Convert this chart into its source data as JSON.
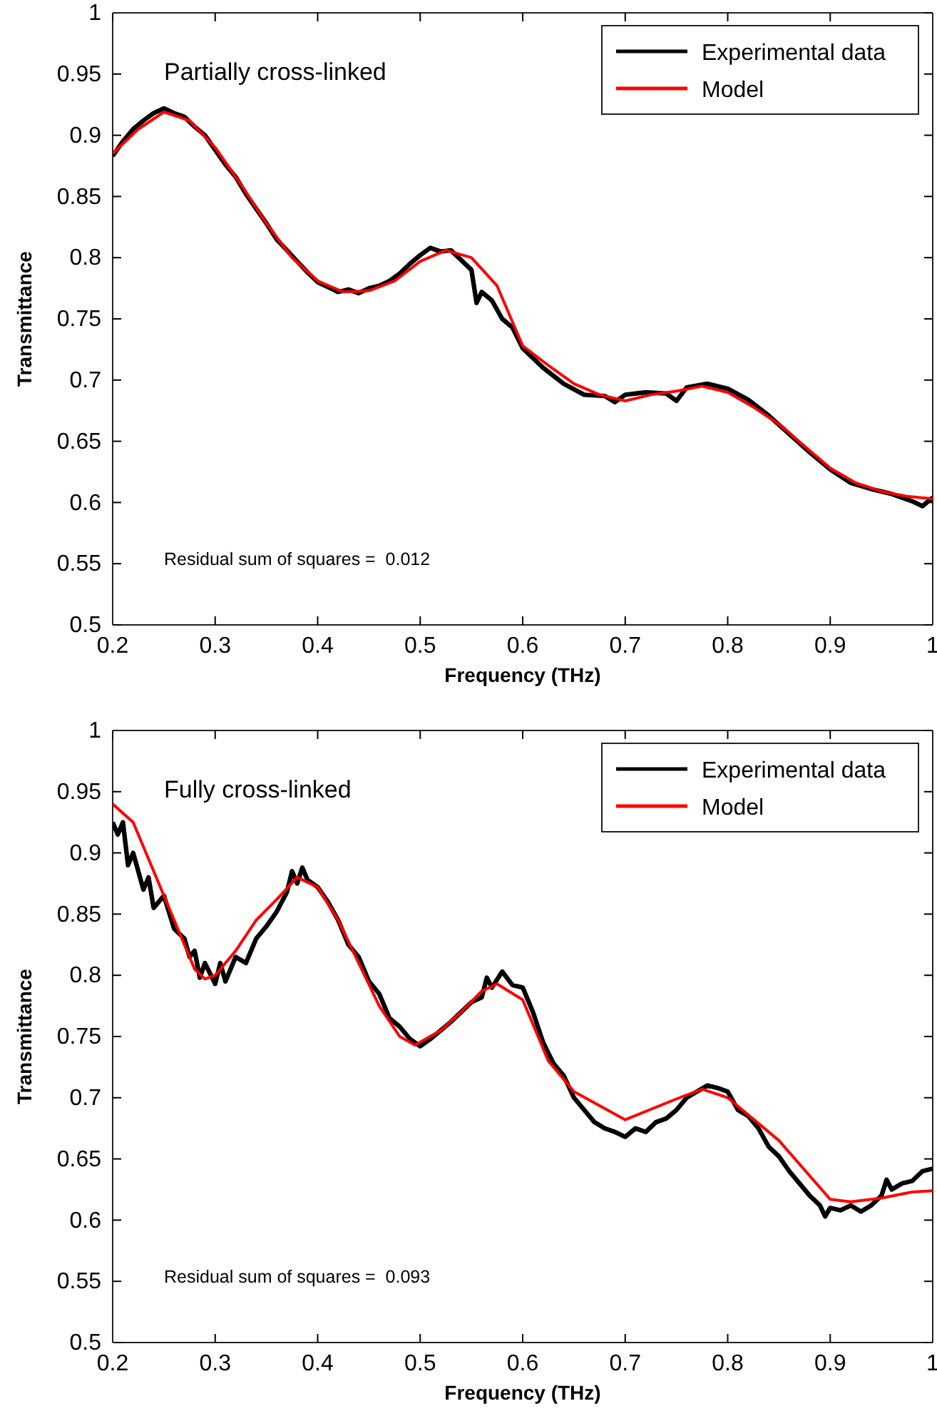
{
  "chart_data": [
    {
      "type": "line",
      "title": "Partially cross-linked",
      "xlabel": "Frequency (THz)",
      "ylabel": "Transmittance",
      "xlim": [
        0.2,
        1
      ],
      "ylim": [
        0.5,
        1
      ],
      "xticks": [
        0.2,
        0.3,
        0.4,
        0.5,
        0.6,
        0.7,
        0.8,
        0.9,
        1
      ],
      "yticks": [
        0.5,
        0.55,
        0.6,
        0.65,
        0.7,
        0.75,
        0.8,
        0.85,
        0.9,
        0.95,
        1
      ],
      "legend": "top right",
      "grid": false,
      "annotations": [
        "Residual sum of squares =  0.012"
      ],
      "series": [
        {
          "name": "Experimental data",
          "color": "#000000",
          "x": [
            0.2,
            0.21,
            0.22,
            0.23,
            0.24,
            0.25,
            0.26,
            0.27,
            0.28,
            0.29,
            0.3,
            0.31,
            0.32,
            0.33,
            0.34,
            0.35,
            0.36,
            0.37,
            0.38,
            0.39,
            0.4,
            0.41,
            0.42,
            0.43,
            0.44,
            0.45,
            0.46,
            0.47,
            0.48,
            0.49,
            0.5,
            0.51,
            0.52,
            0.53,
            0.54,
            0.55,
            0.555,
            0.56,
            0.57,
            0.58,
            0.59,
            0.6,
            0.62,
            0.64,
            0.66,
            0.68,
            0.69,
            0.7,
            0.72,
            0.74,
            0.75,
            0.76,
            0.78,
            0.8,
            0.82,
            0.84,
            0.86,
            0.88,
            0.9,
            0.92,
            0.94,
            0.96,
            0.98,
            0.99,
            1.0
          ],
          "values": [
            0.883,
            0.895,
            0.905,
            0.912,
            0.918,
            0.922,
            0.918,
            0.915,
            0.907,
            0.9,
            0.888,
            0.876,
            0.866,
            0.852,
            0.84,
            0.828,
            0.815,
            0.806,
            0.797,
            0.788,
            0.78,
            0.776,
            0.772,
            0.774,
            0.771,
            0.775,
            0.777,
            0.781,
            0.787,
            0.795,
            0.802,
            0.808,
            0.805,
            0.806,
            0.798,
            0.79,
            0.763,
            0.772,
            0.765,
            0.75,
            0.743,
            0.726,
            0.71,
            0.697,
            0.688,
            0.687,
            0.682,
            0.688,
            0.69,
            0.689,
            0.683,
            0.694,
            0.697,
            0.693,
            0.684,
            0.671,
            0.656,
            0.641,
            0.627,
            0.616,
            0.611,
            0.607,
            0.601,
            0.597,
            0.604
          ]
        },
        {
          "name": "Model",
          "color": "#ff0000",
          "x": [
            0.2,
            0.225,
            0.25,
            0.275,
            0.3,
            0.325,
            0.35,
            0.375,
            0.4,
            0.425,
            0.45,
            0.475,
            0.5,
            0.525,
            0.55,
            0.575,
            0.6,
            0.625,
            0.65,
            0.675,
            0.7,
            0.725,
            0.75,
            0.775,
            0.8,
            0.825,
            0.85,
            0.875,
            0.9,
            0.925,
            0.95,
            0.975,
            1.0
          ],
          "values": [
            0.885,
            0.905,
            0.919,
            0.912,
            0.89,
            0.86,
            0.828,
            0.8,
            0.781,
            0.772,
            0.773,
            0.781,
            0.797,
            0.806,
            0.8,
            0.777,
            0.728,
            0.712,
            0.697,
            0.688,
            0.683,
            0.688,
            0.691,
            0.695,
            0.69,
            0.678,
            0.664,
            0.646,
            0.628,
            0.616,
            0.609,
            0.605,
            0.603
          ]
        }
      ]
    },
    {
      "type": "line",
      "title": "Fully cross-linked",
      "xlabel": "Frequency (THz)",
      "ylabel": "Transmittance",
      "xlim": [
        0.2,
        1
      ],
      "ylim": [
        0.5,
        1
      ],
      "xticks": [
        0.2,
        0.3,
        0.4,
        0.5,
        0.6,
        0.7,
        0.8,
        0.9,
        1
      ],
      "yticks": [
        0.5,
        0.55,
        0.6,
        0.65,
        0.7,
        0.75,
        0.8,
        0.85,
        0.9,
        0.95,
        1
      ],
      "legend": "top right",
      "grid": false,
      "annotations": [
        "Residual sum of squares =  0.093"
      ],
      "series": [
        {
          "name": "Experimental data",
          "color": "#000000",
          "x": [
            0.2,
            0.205,
            0.21,
            0.215,
            0.22,
            0.23,
            0.235,
            0.24,
            0.25,
            0.26,
            0.27,
            0.275,
            0.28,
            0.285,
            0.29,
            0.3,
            0.305,
            0.31,
            0.32,
            0.33,
            0.34,
            0.35,
            0.36,
            0.37,
            0.375,
            0.38,
            0.385,
            0.39,
            0.4,
            0.41,
            0.42,
            0.43,
            0.44,
            0.45,
            0.46,
            0.47,
            0.48,
            0.49,
            0.5,
            0.51,
            0.52,
            0.53,
            0.54,
            0.55,
            0.56,
            0.565,
            0.57,
            0.58,
            0.59,
            0.6,
            0.61,
            0.62,
            0.63,
            0.64,
            0.65,
            0.66,
            0.67,
            0.68,
            0.69,
            0.7,
            0.71,
            0.72,
            0.73,
            0.74,
            0.75,
            0.76,
            0.77,
            0.78,
            0.79,
            0.8,
            0.81,
            0.82,
            0.83,
            0.84,
            0.85,
            0.86,
            0.87,
            0.88,
            0.89,
            0.895,
            0.9,
            0.91,
            0.92,
            0.93,
            0.94,
            0.95,
            0.955,
            0.96,
            0.97,
            0.98,
            0.99,
            1.0
          ],
          "values": [
            0.925,
            0.915,
            0.925,
            0.89,
            0.9,
            0.87,
            0.88,
            0.855,
            0.865,
            0.838,
            0.83,
            0.815,
            0.82,
            0.798,
            0.81,
            0.793,
            0.81,
            0.795,
            0.815,
            0.81,
            0.83,
            0.84,
            0.852,
            0.868,
            0.885,
            0.875,
            0.888,
            0.878,
            0.872,
            0.86,
            0.845,
            0.825,
            0.815,
            0.795,
            0.785,
            0.765,
            0.758,
            0.748,
            0.742,
            0.748,
            0.755,
            0.762,
            0.77,
            0.778,
            0.782,
            0.798,
            0.79,
            0.803,
            0.792,
            0.79,
            0.77,
            0.745,
            0.728,
            0.718,
            0.7,
            0.69,
            0.68,
            0.675,
            0.672,
            0.668,
            0.675,
            0.672,
            0.68,
            0.683,
            0.69,
            0.7,
            0.705,
            0.71,
            0.708,
            0.705,
            0.69,
            0.685,
            0.675,
            0.66,
            0.652,
            0.64,
            0.63,
            0.62,
            0.612,
            0.603,
            0.61,
            0.608,
            0.612,
            0.607,
            0.612,
            0.62,
            0.633,
            0.625,
            0.63,
            0.632,
            0.64,
            0.642
          ]
        },
        {
          "name": "Model",
          "color": "#ff0000",
          "x": [
            0.2,
            0.22,
            0.24,
            0.26,
            0.28,
            0.29,
            0.3,
            0.32,
            0.34,
            0.36,
            0.38,
            0.4,
            0.42,
            0.44,
            0.46,
            0.48,
            0.495,
            0.52,
            0.54,
            0.56,
            0.575,
            0.6,
            0.625,
            0.65,
            0.7,
            0.75,
            0.775,
            0.8,
            0.85,
            0.9,
            0.92,
            0.95,
            0.98,
            1.0
          ],
          "values": [
            0.94,
            0.925,
            0.885,
            0.845,
            0.805,
            0.797,
            0.8,
            0.82,
            0.845,
            0.862,
            0.88,
            0.872,
            0.845,
            0.81,
            0.775,
            0.75,
            0.743,
            0.755,
            0.77,
            0.787,
            0.793,
            0.78,
            0.73,
            0.705,
            0.682,
            0.699,
            0.707,
            0.7,
            0.665,
            0.617,
            0.615,
            0.618,
            0.623,
            0.624
          ]
        }
      ]
    }
  ]
}
